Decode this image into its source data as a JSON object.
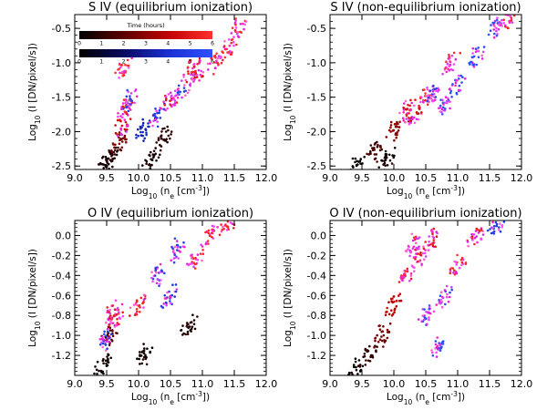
{
  "figure": {
    "colorbar": {
      "title": "Time (hours)",
      "ticks": [
        "0",
        "1",
        "2",
        "3",
        "4",
        "5",
        "6"
      ],
      "ramps": [
        {
          "name": "red",
          "stops": [
            "#000000",
            "#5a0000",
            "#c00000",
            "#ff3030"
          ]
        },
        {
          "name": "blue",
          "stops": [
            "#000000",
            "#0a0a60",
            "#1a30d0",
            "#3050ff"
          ]
        }
      ]
    }
  },
  "chart_data": [
    {
      "type": "scatter",
      "title": "S IV (equilibrium ionization)",
      "xlabel_parts": [
        "Log",
        "10",
        " (n",
        "e",
        " [cm",
        "-3",
        "])"
      ],
      "ylabel_parts": [
        "Log",
        "10",
        " (I [DN/pixel/s])"
      ],
      "xlim": [
        9.0,
        12.0
      ],
      "ylim": [
        -2.55,
        -0.3
      ],
      "xticks": [
        9.0,
        9.5,
        10.0,
        10.5,
        11.0,
        11.5,
        12.0
      ],
      "yticks": [
        -2.5,
        -2.0,
        -1.5,
        -1.0,
        -0.5
      ],
      "has_colorbar": true,
      "grid": false,
      "mode": "eq",
      "slope": 1.9,
      "points": [
        {
          "x": 9.45,
          "y": -2.5,
          "t": 0.3,
          "s": "red"
        },
        {
          "x": 9.6,
          "y": -2.35,
          "t": 0.8,
          "s": "red"
        },
        {
          "x": 9.7,
          "y": -2.15,
          "t": 2.5,
          "s": "red"
        },
        {
          "x": 9.75,
          "y": -1.9,
          "t": 4.5,
          "s": "red"
        },
        {
          "x": 9.8,
          "y": -1.65,
          "t": 5.5,
          "s": "red"
        },
        {
          "x": 9.75,
          "y": -1.1,
          "t": 5.8,
          "s": "red"
        },
        {
          "x": 10.1,
          "y": -1.95,
          "t": 3.5,
          "s": "blue"
        },
        {
          "x": 10.3,
          "y": -1.75,
          "t": 4.5,
          "s": "blue"
        },
        {
          "x": 10.5,
          "y": -1.55,
          "t": 4.8,
          "s": "red"
        },
        {
          "x": 10.7,
          "y": -1.4,
          "t": 5.2,
          "s": "blue"
        },
        {
          "x": 10.9,
          "y": -1.2,
          "t": 5.0,
          "s": "red"
        },
        {
          "x": 11.2,
          "y": -1.0,
          "t": 5.8,
          "s": "red"
        },
        {
          "x": 11.4,
          "y": -0.8,
          "t": 5.8,
          "s": "red"
        },
        {
          "x": 11.55,
          "y": -0.5,
          "t": 5.8,
          "s": "red"
        },
        {
          "x": 10.2,
          "y": -2.4,
          "t": 0.5,
          "s": "red"
        },
        {
          "x": 10.4,
          "y": -2.1,
          "t": 1.0,
          "s": "red"
        },
        {
          "x": 9.85,
          "y": -1.55,
          "t": 5.2,
          "s": "blue"
        },
        {
          "x": 10.85,
          "y": -1.05,
          "t": 5.5,
          "s": "red"
        }
      ]
    },
    {
      "type": "scatter",
      "title": "S IV (non-equilibrium ionization)",
      "xlabel_parts": [
        "Log",
        "10",
        " (n",
        "e",
        " [cm",
        "-3",
        "])"
      ],
      "ylabel_parts": [
        "Log",
        "10",
        " (I [DN/pixel/s])"
      ],
      "xlim": [
        9.0,
        12.0
      ],
      "ylim": [
        -2.55,
        -0.3
      ],
      "xticks": [
        9.0,
        9.5,
        10.0,
        10.5,
        11.0,
        11.5,
        12.0
      ],
      "yticks": [
        -2.5,
        -2.0,
        -1.5,
        -1.0,
        -0.5
      ],
      "has_colorbar": false,
      "grid": false,
      "mode": "neq",
      "slope": 1.9,
      "points": [
        {
          "x": 9.4,
          "y": -2.5,
          "t": 0.2,
          "s": "red"
        },
        {
          "x": 9.7,
          "y": -2.3,
          "t": 1.5,
          "s": "red"
        },
        {
          "x": 10.0,
          "y": -2.0,
          "t": 3.0,
          "s": "red"
        },
        {
          "x": 10.3,
          "y": -1.8,
          "t": 4.5,
          "s": "red"
        },
        {
          "x": 10.5,
          "y": -1.5,
          "t": 5.5,
          "s": "red"
        },
        {
          "x": 10.6,
          "y": -1.45,
          "t": 5.0,
          "s": "blue"
        },
        {
          "x": 10.8,
          "y": -1.6,
          "t": 5.8,
          "s": "blue"
        },
        {
          "x": 11.0,
          "y": -1.3,
          "t": 5.8,
          "s": "blue"
        },
        {
          "x": 11.3,
          "y": -0.9,
          "t": 5.8,
          "s": "blue"
        },
        {
          "x": 11.6,
          "y": -0.5,
          "t": 5.8,
          "s": "blue"
        },
        {
          "x": 11.8,
          "y": -0.35,
          "t": 5.5,
          "s": "red"
        },
        {
          "x": 10.2,
          "y": -1.7,
          "t": 5.0,
          "s": "red"
        },
        {
          "x": 9.9,
          "y": -2.4,
          "t": 0.5,
          "s": "red"
        },
        {
          "x": 10.9,
          "y": -1.0,
          "t": 5.8,
          "s": "red"
        }
      ]
    },
    {
      "type": "scatter",
      "title": "O IV (equilibrium ionization)",
      "xlabel_parts": [
        "Log",
        "10",
        " (n",
        "e",
        " [cm",
        "-3",
        "])"
      ],
      "ylabel_parts": [
        "Log",
        "10",
        " (I [DN/pixel/s])"
      ],
      "xlim": [
        9.0,
        12.0
      ],
      "ylim": [
        -1.4,
        0.15
      ],
      "xticks": [
        9.0,
        9.5,
        10.0,
        10.5,
        11.0,
        11.5,
        12.0
      ],
      "yticks": [
        -1.2,
        -1.0,
        -0.8,
        -0.6,
        -0.4,
        -0.2,
        0.0
      ],
      "has_colorbar": false,
      "grid": false,
      "mode": "eq",
      "slope": 1.3,
      "points": [
        {
          "x": 9.45,
          "y": -1.3,
          "t": 0.3,
          "s": "red"
        },
        {
          "x": 9.55,
          "y": -1.0,
          "t": 2.0,
          "s": "red"
        },
        {
          "x": 9.65,
          "y": -0.85,
          "t": 5.5,
          "s": "red"
        },
        {
          "x": 9.6,
          "y": -0.75,
          "t": 5.0,
          "s": "red"
        },
        {
          "x": 9.5,
          "y": -1.05,
          "t": 5.0,
          "s": "blue"
        },
        {
          "x": 10.0,
          "y": -0.7,
          "t": 5.5,
          "s": "red"
        },
        {
          "x": 10.3,
          "y": -0.4,
          "t": 5.0,
          "s": "blue"
        },
        {
          "x": 10.6,
          "y": -0.15,
          "t": 5.2,
          "s": "blue"
        },
        {
          "x": 10.9,
          "y": -0.25,
          "t": 5.8,
          "s": "red"
        },
        {
          "x": 11.1,
          "y": 0.0,
          "t": 5.8,
          "s": "red"
        },
        {
          "x": 11.4,
          "y": 0.1,
          "t": 5.5,
          "s": "red"
        },
        {
          "x": 10.5,
          "y": -0.6,
          "t": 4.5,
          "s": "blue"
        },
        {
          "x": 10.1,
          "y": -1.2,
          "t": 0.4,
          "s": "red"
        },
        {
          "x": 10.8,
          "y": -0.9,
          "t": 0.7,
          "s": "red"
        }
      ]
    },
    {
      "type": "scatter",
      "title": "O IV (non-equilibrium ionization)",
      "xlabel_parts": [
        "Log",
        "10",
        " (n",
        "e",
        " [cm",
        "-3",
        "])"
      ],
      "ylabel_parts": [
        "Log",
        "10",
        " (I [DN/pixel/s])"
      ],
      "xlim": [
        9.0,
        12.0
      ],
      "ylim": [
        -1.4,
        0.15
      ],
      "xticks": [
        9.0,
        9.5,
        10.0,
        10.5,
        11.0,
        11.5,
        12.0
      ],
      "yticks": [
        -1.2,
        -1.0,
        -0.8,
        -0.6,
        -0.4,
        -0.2,
        0.0
      ],
      "has_colorbar": false,
      "grid": false,
      "mode": "neq",
      "slope": 1.3,
      "points": [
        {
          "x": 9.4,
          "y": -1.35,
          "t": 0.2,
          "s": "red"
        },
        {
          "x": 9.6,
          "y": -1.2,
          "t": 1.0,
          "s": "red"
        },
        {
          "x": 9.8,
          "y": -1.0,
          "t": 2.5,
          "s": "red"
        },
        {
          "x": 10.0,
          "y": -0.7,
          "t": 4.0,
          "s": "red"
        },
        {
          "x": 10.2,
          "y": -0.4,
          "t": 5.5,
          "s": "red"
        },
        {
          "x": 10.4,
          "y": -0.2,
          "t": 5.0,
          "s": "red"
        },
        {
          "x": 10.5,
          "y": -0.8,
          "t": 5.8,
          "s": "blue"
        },
        {
          "x": 10.7,
          "y": -1.1,
          "t": 5.8,
          "s": "blue"
        },
        {
          "x": 10.8,
          "y": -0.6,
          "t": 5.5,
          "s": "blue"
        },
        {
          "x": 11.0,
          "y": -0.3,
          "t": 5.8,
          "s": "red"
        },
        {
          "x": 11.3,
          "y": 0.0,
          "t": 5.5,
          "s": "red"
        },
        {
          "x": 11.6,
          "y": 0.1,
          "t": 5.0,
          "s": "blue"
        },
        {
          "x": 10.3,
          "y": -0.1,
          "t": 5.8,
          "s": "red"
        },
        {
          "x": 10.6,
          "y": -0.05,
          "t": 5.0,
          "s": "red"
        }
      ]
    }
  ]
}
